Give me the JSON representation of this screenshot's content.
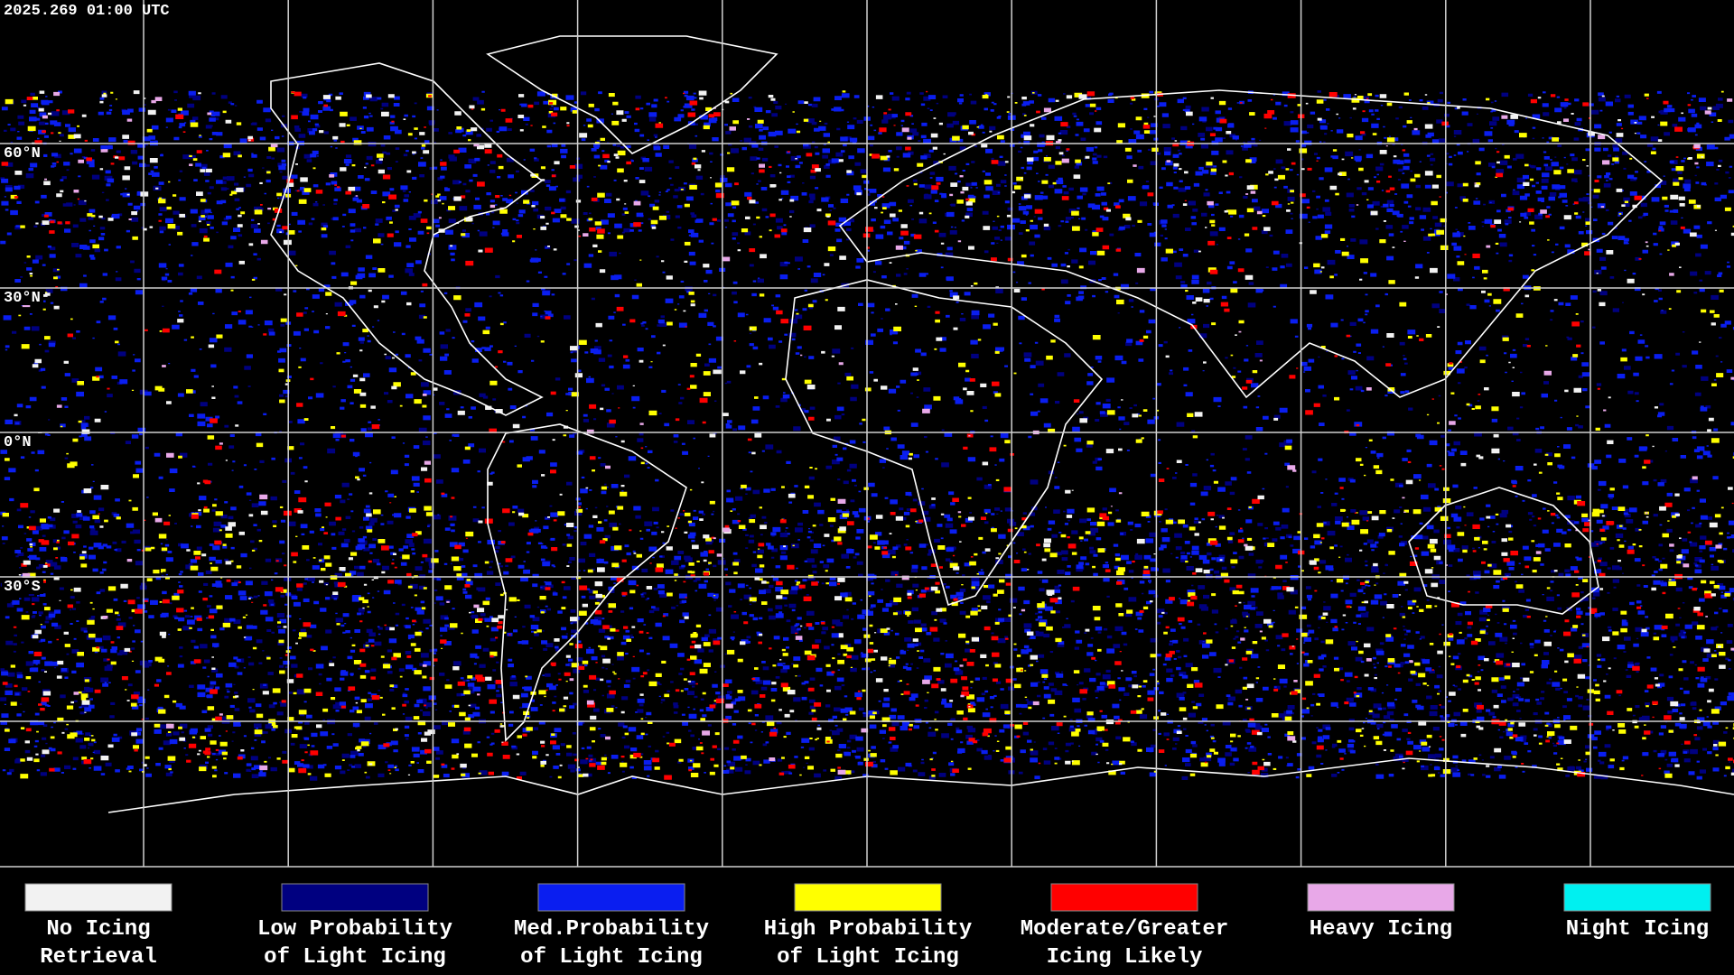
{
  "header": {
    "timestamp": "2025.269 01:00 UTC"
  },
  "latitude_labels": [
    "60°N",
    "30°N",
    "0°N",
    "30°S"
  ],
  "legend": [
    {
      "lines": [
        "No Icing",
        "Retrieval"
      ],
      "color": "#f2f2f2"
    },
    {
      "lines": [
        "Low Probability",
        "of Light Icing"
      ],
      "color": "#000080"
    },
    {
      "lines": [
        "Med.Probability",
        "of Light Icing"
      ],
      "color": "#0a1ef0"
    },
    {
      "lines": [
        "High Probability",
        "of Light Icing"
      ],
      "color": "#ffff00"
    },
    {
      "lines": [
        "Moderate/Greater",
        "Icing Likely"
      ],
      "color": "#ff0000"
    },
    {
      "lines": [
        "Heavy Icing"
      ],
      "color": "#e8a8e8"
    },
    {
      "lines": [
        "Night Icing"
      ],
      "color": "#00f0f0"
    }
  ]
}
